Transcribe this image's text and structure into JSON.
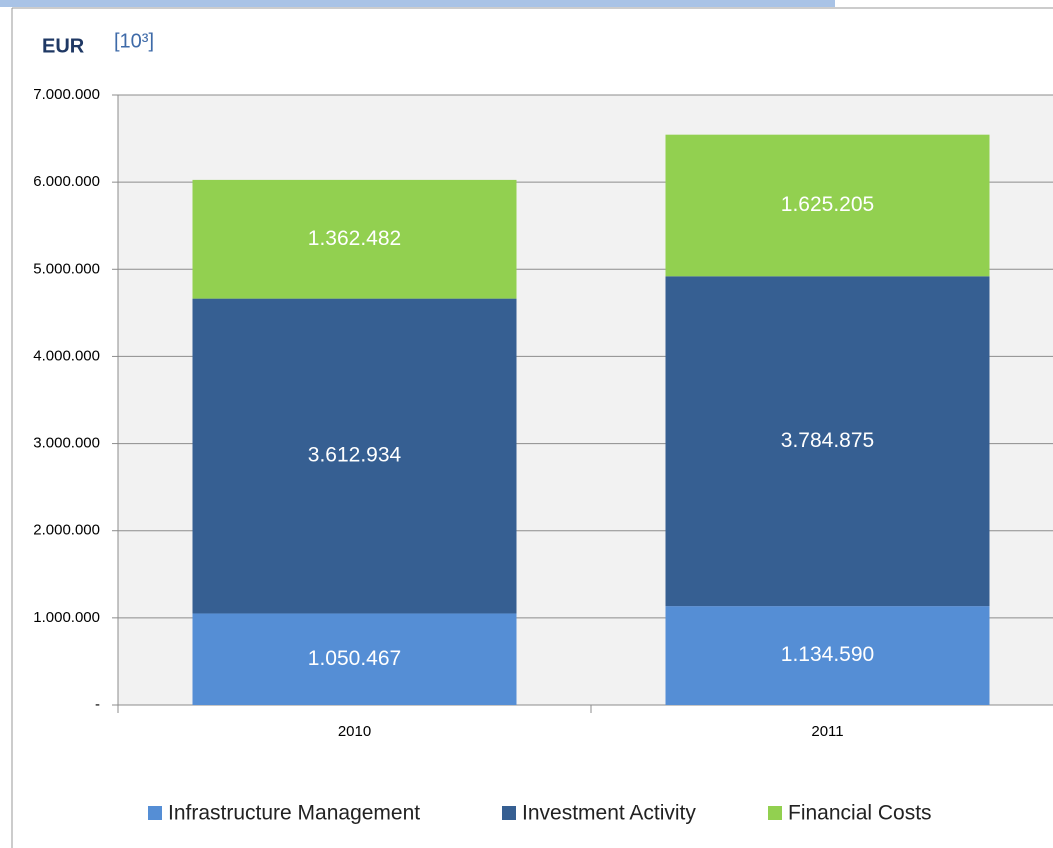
{
  "chart_data": {
    "type": "stacked_bar",
    "unit": "EUR",
    "scale_note": "[10³]",
    "categories": [
      "2010",
      "2011"
    ],
    "series": [
      {
        "name": "Infrastructure Management",
        "color": "#558ed5",
        "values": [
          1050467,
          1134590
        ],
        "value_labels": [
          "1.050.467",
          "1.134.590"
        ]
      },
      {
        "name": "Investment Activity",
        "color": "#365f92",
        "values": [
          3612934,
          3784875
        ],
        "value_labels": [
          "3.612.934",
          "3.784.875"
        ]
      },
      {
        "name": "Financial Costs",
        "color": "#92d050",
        "values": [
          1362482,
          1625205
        ],
        "value_labels": [
          "1.362.482",
          "1.625.205"
        ]
      }
    ],
    "ylim": [
      0,
      7000000
    ],
    "yticks": [
      {
        "value": 0,
        "label": "-"
      },
      {
        "value": 1000000,
        "label": "1.000.000"
      },
      {
        "value": 2000000,
        "label": "2.000.000"
      },
      {
        "value": 3000000,
        "label": "3.000.000"
      },
      {
        "value": 4000000,
        "label": "4.000.000"
      },
      {
        "value": 5000000,
        "label": "5.000.000"
      },
      {
        "value": 6000000,
        "label": "6.000.000"
      },
      {
        "value": 7000000,
        "label": "7.000.000"
      }
    ],
    "grid": true
  }
}
